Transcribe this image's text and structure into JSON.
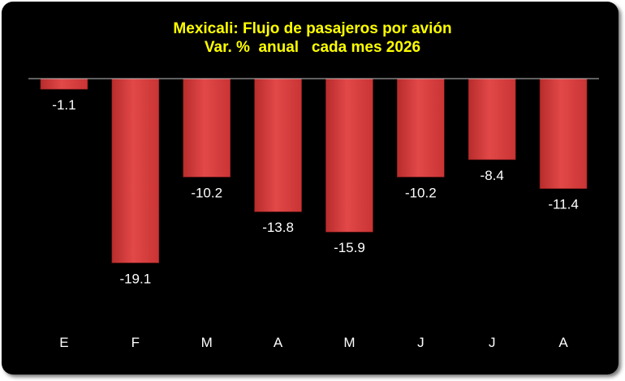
{
  "chart_data": {
    "type": "bar",
    "title": "Mexicali: Flujo de pasajeros por avión",
    "subtitle": "Var. %  anual   cada mes 2026",
    "categories": [
      "E",
      "F",
      "M",
      "A",
      "M",
      "J",
      "J",
      "A"
    ],
    "values": [
      -1.1,
      -19.1,
      -10.2,
      -13.8,
      -15.9,
      -10.2,
      -8.4,
      -11.4
    ],
    "value_labels": [
      "-1.1",
      "-19.1",
      "-10.2",
      "-13.8",
      "-15.9",
      "-10.2",
      "-8.4",
      "-11.4"
    ],
    "ylim": [
      -20,
      0
    ],
    "grid": false,
    "legend": "none",
    "colors": {
      "bar": "#d63a3a",
      "bar_light": "#ee5a5a",
      "background": "#000000",
      "title": "#ffff00",
      "text": "#ffffff",
      "axis": "#bfbfbf"
    }
  }
}
